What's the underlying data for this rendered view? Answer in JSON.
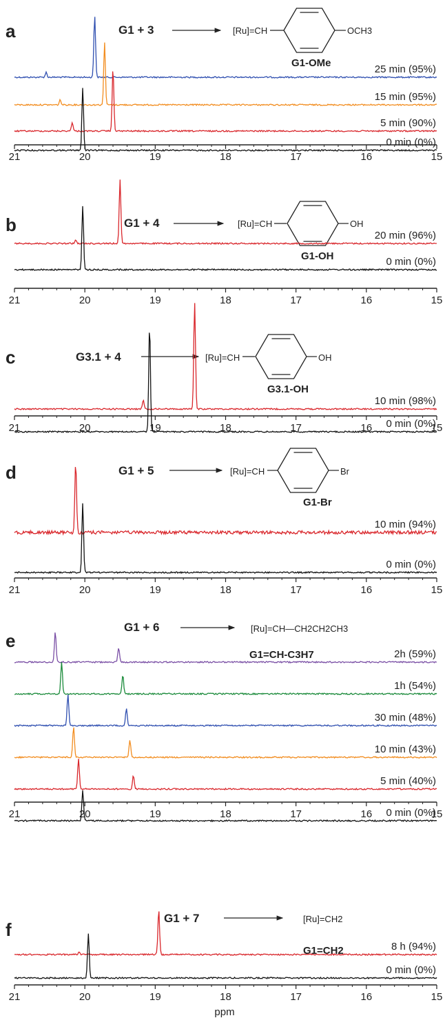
{
  "xlabel": "ppm",
  "colors": {
    "black": "#111111",
    "red": "#d9262b",
    "orange": "#f28c1e",
    "blue": "#2f4fb0",
    "green": "#1a8a3a",
    "purple": "#7a4fa5"
  },
  "chart_data": [
    {
      "type": "line",
      "panel_label": "a",
      "reaction": "G1 + 3",
      "product": "[Ru]=CH—C6H4—OCH3",
      "product_label": "G1-OMe",
      "substituent": "OCH3",
      "xlim": [
        21,
        15
      ],
      "x_ticks": [
        "21",
        "20",
        "19",
        "18",
        "17",
        "16",
        "15"
      ],
      "series": [
        {
          "name": "25 min (95%)",
          "color": "blue",
          "peaks": [
            [
              19.86,
              1.0
            ],
            [
              20.55,
              0.08
            ]
          ]
        },
        {
          "name": "15 min (95%)",
          "color": "orange",
          "peaks": [
            [
              19.72,
              1.0
            ],
            [
              20.35,
              0.08
            ]
          ]
        },
        {
          "name": "5 min (90%)",
          "color": "red",
          "peaks": [
            [
              19.6,
              1.0
            ],
            [
              20.18,
              0.14
            ]
          ]
        },
        {
          "name": "0 min  (0%)",
          "color": "black",
          "peaks": [
            [
              20.03,
              1.0
            ]
          ]
        }
      ]
    },
    {
      "type": "line",
      "panel_label": "b",
      "reaction": "G1 + 4",
      "product": "[Ru]=CH—C6H4—OH",
      "product_label": "G1-OH",
      "substituent": "OH",
      "xlim": [
        21,
        15
      ],
      "x_ticks": [
        "21",
        "20",
        "19",
        "18",
        "17",
        "16",
        "15"
      ],
      "series": [
        {
          "name": "20 min (96%)",
          "color": "red",
          "peaks": [
            [
              19.5,
              1.0
            ],
            [
              20.13,
              0.05
            ]
          ]
        },
        {
          "name": "0 min  (0%)",
          "color": "black",
          "peaks": [
            [
              20.03,
              1.0
            ]
          ]
        }
      ]
    },
    {
      "type": "line",
      "panel_label": "c",
      "reaction": "G3.1 + 4",
      "product": "[Ru]=CH—C6H4—OH",
      "product_label": "G3.1-OH",
      "substituent": "OH",
      "xlim": [
        21,
        15
      ],
      "x_ticks": [
        "21",
        "20",
        "19",
        "18",
        "17",
        "16",
        "15"
      ],
      "series": [
        {
          "name": "10 min (98%)",
          "color": "red",
          "peaks": [
            [
              18.44,
              1.0
            ],
            [
              19.17,
              0.08
            ]
          ]
        },
        {
          "name": "0 min  (0%)",
          "color": "black",
          "peaks": [
            [
              19.08,
              1.0
            ]
          ]
        }
      ]
    },
    {
      "type": "line",
      "panel_label": "d",
      "reaction": "G1 + 5",
      "product": "[Ru]=CH—C6H4—Br",
      "product_label": "G1-Br",
      "substituent": "Br",
      "xlim": [
        21,
        15
      ],
      "x_ticks": [
        "21",
        "20",
        "19",
        "18",
        "17",
        "16",
        "15"
      ],
      "series": [
        {
          "name": "10 min (94%)",
          "color": "red",
          "peaks": [
            [
              20.13,
              1.0
            ]
          ]
        },
        {
          "name": "0 min  (0%)",
          "color": "black",
          "peaks": [
            [
              20.03,
              1.0
            ]
          ]
        }
      ]
    },
    {
      "type": "line",
      "panel_label": "e",
      "reaction": "G1 + 6",
      "product": "[Ru]=CH—CH2CH2CH3",
      "product_label": "G1=CH-C3H7",
      "xlim": [
        21,
        15
      ],
      "x_ticks": [
        "21",
        "20",
        "19",
        "18",
        "17",
        "16",
        "15"
      ],
      "series": [
        {
          "name": "2h (59%)",
          "color": "purple",
          "peaks": [
            [
              20.42,
              1.0
            ],
            [
              19.52,
              0.45
            ]
          ]
        },
        {
          "name": "1h (54%)",
          "color": "green",
          "peaks": [
            [
              20.33,
              1.0
            ],
            [
              19.46,
              0.6
            ]
          ]
        },
        {
          "name": "30 min (48%)",
          "color": "blue",
          "peaks": [
            [
              20.24,
              1.0
            ],
            [
              19.41,
              0.55
            ]
          ]
        },
        {
          "name": "10 min (43%)",
          "color": "orange",
          "peaks": [
            [
              20.16,
              1.0
            ],
            [
              19.36,
              0.55
            ]
          ]
        },
        {
          "name": "5 min (40%)",
          "color": "red",
          "peaks": [
            [
              20.09,
              1.0
            ],
            [
              19.31,
              0.45
            ]
          ]
        },
        {
          "name": "0 min   (0%)",
          "color": "black",
          "peaks": [
            [
              20.03,
              1.0
            ]
          ]
        }
      ]
    },
    {
      "type": "line",
      "panel_label": "f",
      "reaction": "G1 + 7",
      "product": "[Ru]=CH2",
      "product_label": "G1=CH2",
      "xlim": [
        21,
        15
      ],
      "x_ticks": [
        "21",
        "20",
        "19",
        "18",
        "17",
        "16",
        "15"
      ],
      "xlabel": "ppm",
      "series": [
        {
          "name": "8 h (94%)",
          "color": "red",
          "peaks": [
            [
              18.95,
              1.0
            ],
            [
              20.08,
              0.07
            ]
          ]
        },
        {
          "name": "0 min (0%)",
          "color": "black",
          "peaks": [
            [
              19.95,
              1.0
            ]
          ]
        }
      ]
    }
  ]
}
